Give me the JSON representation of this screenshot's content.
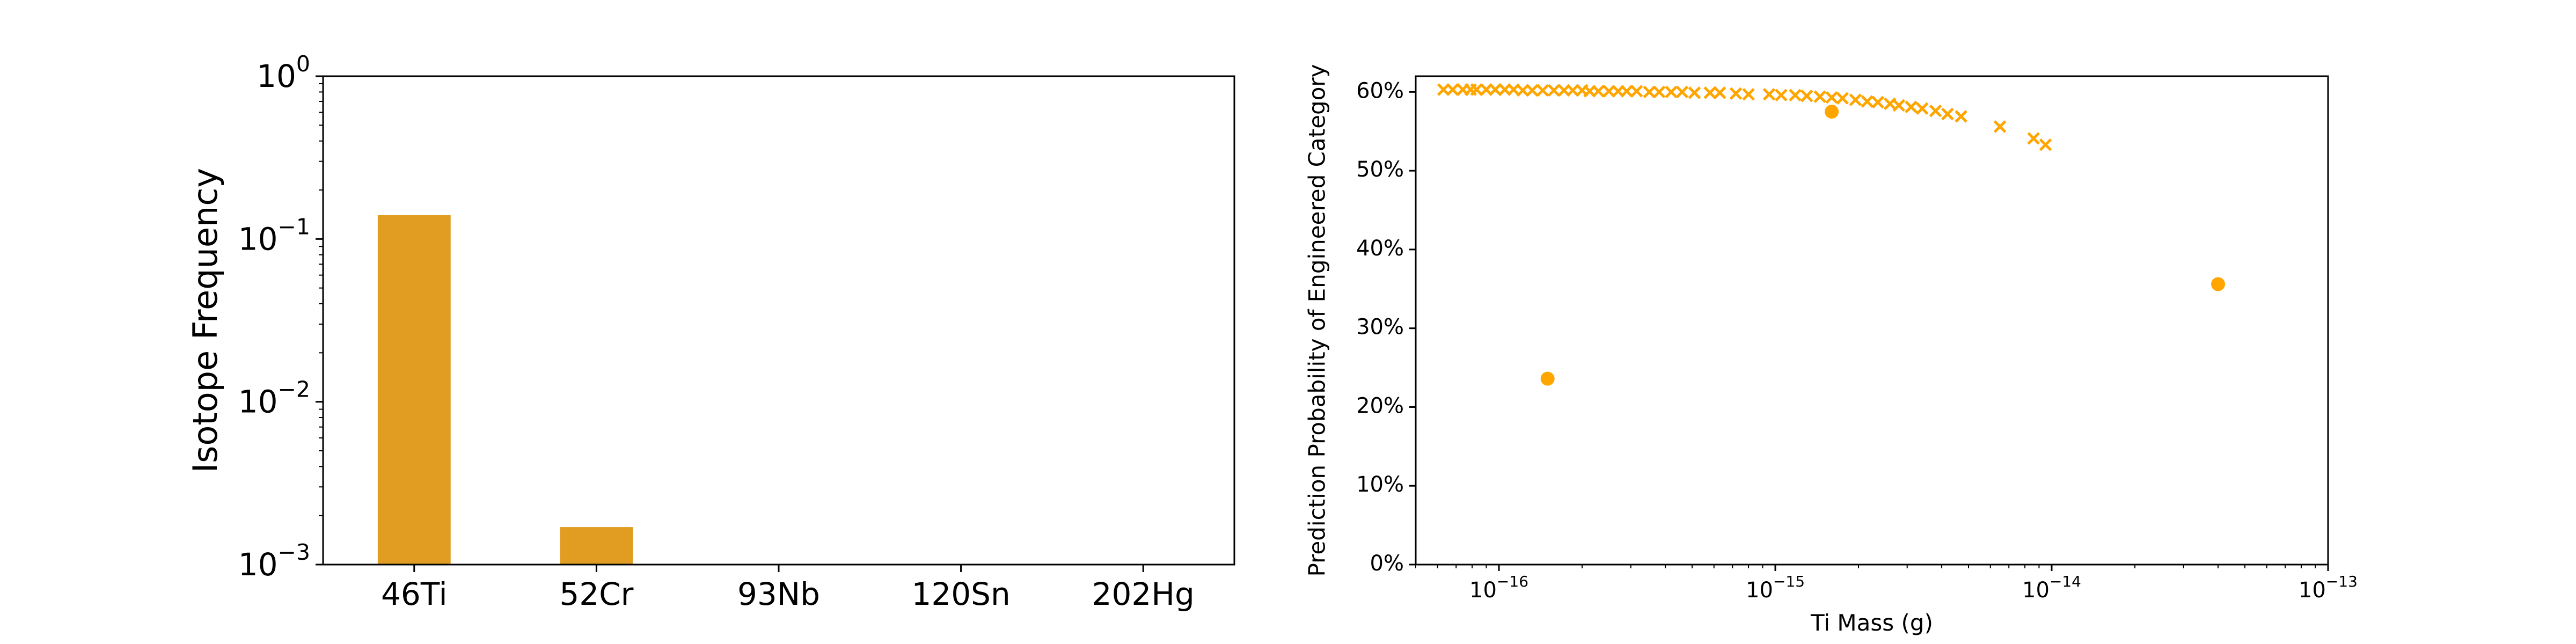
{
  "chart_data": [
    {
      "type": "bar",
      "ylabel": "Isotope Frequency",
      "yscale": "log",
      "ylim": [
        0.001,
        1
      ],
      "yticks": [
        {
          "value": 0.001,
          "base": "10",
          "exp": "−3"
        },
        {
          "value": 0.01,
          "base": "10",
          "exp": "−2"
        },
        {
          "value": 0.1,
          "base": "10",
          "exp": "−1"
        },
        {
          "value": 1,
          "base": "10",
          "exp": "0"
        }
      ],
      "categories": [
        "46Ti",
        "52Cr",
        "93Nb",
        "120Sn",
        "202Hg"
      ],
      "values": [
        0.14,
        0.0017,
        null,
        null,
        null
      ],
      "bar_color": "#E09D22"
    },
    {
      "type": "scatter",
      "xlabel": "Ti Mass (g)",
      "ylabel": "Prediction Probability of Engineered Category",
      "xscale": "log",
      "xlim": [
        5e-17,
        1e-13
      ],
      "ylim": [
        0,
        0.62
      ],
      "xticks": [
        {
          "value": 1e-16,
          "base": "10",
          "exp": "−16"
        },
        {
          "value": 1e-15,
          "base": "10",
          "exp": "−15"
        },
        {
          "value": 1e-14,
          "base": "10",
          "exp": "−14"
        },
        {
          "value": 1e-13,
          "base": "10",
          "exp": "−13"
        }
      ],
      "yticks": [
        {
          "value": 0.0,
          "label": "0%"
        },
        {
          "value": 0.1,
          "label": "10%"
        },
        {
          "value": 0.2,
          "label": "20%"
        },
        {
          "value": 0.3,
          "label": "30%"
        },
        {
          "value": 0.4,
          "label": "40%"
        },
        {
          "value": 0.5,
          "label": "50%"
        },
        {
          "value": 0.6,
          "label": "60%"
        }
      ],
      "marker_color": "#FFA500",
      "series": [
        {
          "marker": "x",
          "x": [
            6.3e-17,
            6.8e-17,
            7.4e-17,
            7.9e-17,
            8.3e-17,
            9e-17,
            9.7e-17,
            1.05e-16,
            1.13e-16,
            1.22e-16,
            1.32e-16,
            1.44e-16,
            1.58e-16,
            1.72e-16,
            1.85e-16,
            2e-16,
            2.13e-16,
            2.29e-16,
            2.5e-16,
            2.7e-16,
            2.9e-16,
            3.15e-16,
            3.5e-16,
            3.8e-16,
            4.2e-16,
            4.6e-16,
            5.1e-16,
            5.8e-16,
            6.3e-16,
            7.2e-16,
            8e-16,
            9.5e-16,
            1.05e-15,
            1.18e-15,
            1.3e-15,
            1.45e-15,
            1.6e-15,
            1.75e-15,
            1.95e-15,
            2.15e-15,
            2.35e-15,
            2.6e-15,
            2.8e-15,
            3.1e-15,
            3.4e-15,
            3.8e-15,
            4.2e-15,
            4.7e-15,
            6.5e-15,
            8.6e-15,
            9.5e-15
          ],
          "y": [
            0.603,
            0.603,
            0.603,
            0.603,
            0.603,
            0.603,
            0.603,
            0.603,
            0.603,
            0.602,
            0.602,
            0.602,
            0.602,
            0.602,
            0.602,
            0.602,
            0.601,
            0.601,
            0.601,
            0.601,
            0.601,
            0.601,
            0.6,
            0.6,
            0.6,
            0.6,
            0.599,
            0.599,
            0.599,
            0.598,
            0.597,
            0.597,
            0.596,
            0.596,
            0.595,
            0.594,
            0.593,
            0.592,
            0.59,
            0.588,
            0.587,
            0.585,
            0.583,
            0.581,
            0.579,
            0.576,
            0.572,
            0.569,
            0.556,
            0.541,
            0.533
          ]
        },
        {
          "marker": "o",
          "x": [
            1.5e-16,
            1.6e-15,
            4e-14
          ],
          "y": [
            0.236,
            0.575,
            0.356
          ]
        }
      ]
    }
  ]
}
